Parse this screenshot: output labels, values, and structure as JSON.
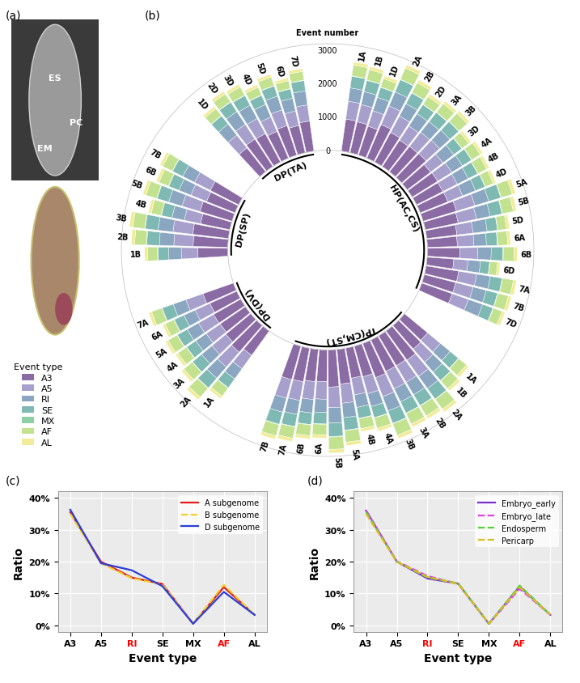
{
  "chart_data": [
    {
      "type": "image",
      "panel": "(a)",
      "labels": [
        "ES",
        "PC",
        "EM"
      ]
    },
    {
      "type": "polar_bar",
      "panel": "(b)",
      "stacked": true,
      "grid": false,
      "ylabel": "Event number",
      "legend_title": "Event type",
      "ylim": [
        0,
        3200
      ],
      "yticks": [
        0,
        1000,
        2000,
        3000
      ],
      "series": [
        {
          "name": "A3",
          "color": "#8B6BA4"
        },
        {
          "name": "A5",
          "color": "#A7A0CC"
        },
        {
          "name": "RI",
          "color": "#8AA6C0"
        },
        {
          "name": "SE",
          "color": "#7FB9B4"
        },
        {
          "name": "MX",
          "color": "#8FCFA6"
        },
        {
          "name": "AF",
          "color": "#C3E28F"
        },
        {
          "name": "AL",
          "color": "#F2EC9A"
        }
      ],
      "groups": [
        {
          "name": "HP(AC,CS)",
          "categories": [
            "1A",
            "1B",
            "1D",
            "2A",
            "2B",
            "2D",
            "3A",
            "3B",
            "3D",
            "4A",
            "4B",
            "4D",
            "5A",
            "5B",
            "5D",
            "6A",
            "6B",
            "6D",
            "7A",
            "7B",
            "7D"
          ],
          "values": [
            [
              972,
              540,
              405,
              351,
              14,
              324,
              95
            ],
            [
              954,
              530,
              398,
              345,
              13,
              318,
              93
            ],
            [
              913,
              488,
              425,
              313,
              13,
              263,
              88
            ],
            [
              1098,
              610,
              458,
              397,
              15,
              366,
              107
            ],
            [
              1008,
              560,
              420,
              364,
              14,
              336,
              98
            ],
            [
              949,
              507,
              442,
              325,
              13,
              273,
              91
            ],
            [
              972,
              540,
              405,
              351,
              14,
              324,
              95
            ],
            [
              990,
              550,
              413,
              358,
              14,
              330,
              96
            ],
            [
              876,
              468,
              408,
              300,
              12,
              252,
              84
            ],
            [
              900,
              500,
              375,
              325,
              13,
              300,
              88
            ],
            [
              882,
              490,
              368,
              319,
              12,
              294,
              86
            ],
            [
              894,
              478,
              417,
              306,
              12,
              257,
              86
            ],
            [
              1044,
              580,
              435,
              377,
              15,
              348,
              102
            ],
            [
              1008,
              560,
              420,
              364,
              14,
              336,
              98
            ],
            [
              913,
              488,
              425,
              313,
              13,
              263,
              88
            ],
            [
              900,
              500,
              375,
              325,
              13,
              300,
              88
            ],
            [
              972,
              540,
              405,
              351,
              14,
              324,
              95
            ],
            [
              803,
              429,
              374,
              275,
              11,
              231,
              77
            ],
            [
              990,
              550,
              413,
              358,
              14,
              330,
              96
            ],
            [
              972,
              540,
              405,
              351,
              14,
              324,
              95
            ],
            [
              967,
              517,
              451,
              331,
              13,
              278,
              93
            ]
          ]
        },
        {
          "name": "TP(CM,ST)",
          "categories": [
            "1A",
            "1B",
            "2A",
            "2B",
            "3A",
            "3B",
            "4A",
            "4B",
            "5A",
            "5B",
            "6A",
            "6B",
            "7A",
            "7B"
          ],
          "values": [
            [
              900,
              500,
              375,
              325,
              13,
              300,
              88
            ],
            [
              936,
              520,
              390,
              338,
              13,
              312,
              91
            ],
            [
              1080,
              600,
              450,
              390,
              15,
              360,
              105
            ],
            [
              1044,
              580,
              435,
              377,
              15,
              348,
              102
            ],
            [
              1044,
              580,
              435,
              377,
              15,
              348,
              102
            ],
            [
              1098,
              610,
              458,
              397,
              15,
              366,
              107
            ],
            [
              954,
              530,
              398,
              345,
              13,
              318,
              93
            ],
            [
              918,
              510,
              383,
              332,
              13,
              306,
              89
            ],
            [
              1044,
              580,
              435,
              377,
              15,
              348,
              102
            ],
            [
              1116,
              620,
              465,
              403,
              16,
              372,
              109
            ],
            [
              954,
              530,
              398,
              345,
              13,
              318,
              93
            ],
            [
              972,
              540,
              405,
              351,
              14,
              324,
              95
            ],
            [
              1026,
              570,
              428,
              371,
              14,
              342,
              100
            ],
            [
              1044,
              580,
              435,
              377,
              15,
              348,
              102
            ]
          ]
        },
        {
          "name": "DP(DV)",
          "categories": [
            "1A",
            "2A",
            "3A",
            "4A",
            "5A",
            "6A",
            "7A"
          ],
          "values": [
            [
              900,
              500,
              375,
              325,
              13,
              300,
              88
            ],
            [
              1062,
              590,
              443,
              384,
              15,
              354,
              103
            ],
            [
              972,
              540,
              405,
              351,
              14,
              324,
              95
            ],
            [
              918,
              510,
              383,
              332,
              13,
              306,
              89
            ],
            [
              936,
              520,
              390,
              338,
              13,
              312,
              91
            ],
            [
              882,
              490,
              368,
              319,
              12,
              294,
              86
            ],
            [
              972,
              540,
              405,
              351,
              14,
              324,
              95
            ]
          ]
        },
        {
          "name": "DP(SP)",
          "categories": [
            "1B",
            "2B",
            "3B",
            "4B",
            "5B",
            "6B",
            "7B"
          ],
          "values": [
            [
              900,
              500,
              375,
              325,
              13,
              300,
              88
            ],
            [
              1044,
              580,
              435,
              377,
              15,
              348,
              102
            ],
            [
              1080,
              600,
              450,
              390,
              15,
              360,
              105
            ],
            [
              900,
              500,
              375,
              325,
              13,
              300,
              88
            ],
            [
              1008,
              560,
              420,
              364,
              14,
              336,
              98
            ],
            [
              918,
              510,
              383,
              332,
              13,
              306,
              89
            ],
            [
              954,
              530,
              398,
              345,
              13,
              318,
              93
            ]
          ]
        },
        {
          "name": "DP(TA)",
          "categories": [
            "1D",
            "2D",
            "3D",
            "4D",
            "5D",
            "6D",
            "7D"
          ],
          "values": [
            [
              913,
              488,
              425,
              313,
              13,
              263,
              88
            ],
            [
              986,
              527,
              459,
              338,
              14,
              284,
              95
            ],
            [
              967,
              517,
              451,
              331,
              13,
              278,
              93
            ],
            [
              876,
              468,
              408,
              300,
              12,
              252,
              84
            ],
            [
              931,
              497,
              434,
              319,
              13,
              268,
              89
            ],
            [
              840,
              449,
              391,
              288,
              12,
              242,
              81
            ],
            [
              913,
              488,
              425,
              313,
              13,
              263,
              88
            ]
          ]
        }
      ]
    },
    {
      "type": "line",
      "panel": "(c)",
      "xlabel": "Event type",
      "ylabel": "Ratio",
      "categories": [
        "A3",
        "A5",
        "RI",
        "SE",
        "MX",
        "AF",
        "AL"
      ],
      "ylim": [
        -2,
        42
      ],
      "yticks": [
        {
          "value": 0,
          "label": "0%"
        },
        {
          "value": 10,
          "label": "10%"
        },
        {
          "value": 20,
          "label": "20%"
        },
        {
          "value": 30,
          "label": "30%"
        },
        {
          "value": 40,
          "label": "40%"
        }
      ],
      "grid": true,
      "legend": "upper right",
      "series": [
        {
          "name": "A subgenome",
          "color": "#E41A1C",
          "line_style": "solid",
          "values": [
            35.5,
            20,
            15,
            13,
            0.5,
            12,
            3.3
          ]
        },
        {
          "name": "B subgenome",
          "color": "#F2D027",
          "line_style": "dashed",
          "values": [
            35,
            19.5,
            14.8,
            12.8,
            0.5,
            12.7,
            3.3
          ]
        },
        {
          "name": "D subgenome",
          "color": "#2B3FD8",
          "line_style": "solid",
          "values": [
            36.3,
            19.5,
            17.3,
            12.3,
            0.5,
            10.5,
            3.3
          ]
        }
      ]
    },
    {
      "type": "line",
      "panel": "(d)",
      "xlabel": "Event type",
      "ylabel": "Ratio",
      "categories": [
        "A3",
        "A5",
        "RI",
        "SE",
        "MX",
        "AF",
        "AL"
      ],
      "ylim": [
        -2,
        42
      ],
      "yticks": [
        {
          "value": 0,
          "label": "0%"
        },
        {
          "value": 10,
          "label": "10%"
        },
        {
          "value": 20,
          "label": "20%"
        },
        {
          "value": 30,
          "label": "30%"
        },
        {
          "value": 40,
          "label": "40%"
        }
      ],
      "grid": true,
      "legend": "upper right",
      "series": [
        {
          "name": "Embryo_early",
          "color": "#7B2FD0",
          "line_style": "solid",
          "values": [
            36,
            20,
            14.7,
            13.1,
            0.5,
            12.2,
            3.3
          ]
        },
        {
          "name": "Embryo_late",
          "color": "#E040E0",
          "line_style": "dashed",
          "values": [
            36,
            20.1,
            15.5,
            13,
            0.5,
            11.5,
            3.3
          ]
        },
        {
          "name": "Endosperm",
          "color": "#55D040",
          "line_style": "dashed",
          "values": [
            35.5,
            20,
            15,
            13.2,
            0.5,
            12.5,
            3.3
          ]
        },
        {
          "name": "Pericarp",
          "color": "#D8C020",
          "line_style": "dashed",
          "values": [
            35,
            20,
            15.2,
            13,
            0.5,
            12,
            3.3
          ]
        }
      ]
    }
  ]
}
